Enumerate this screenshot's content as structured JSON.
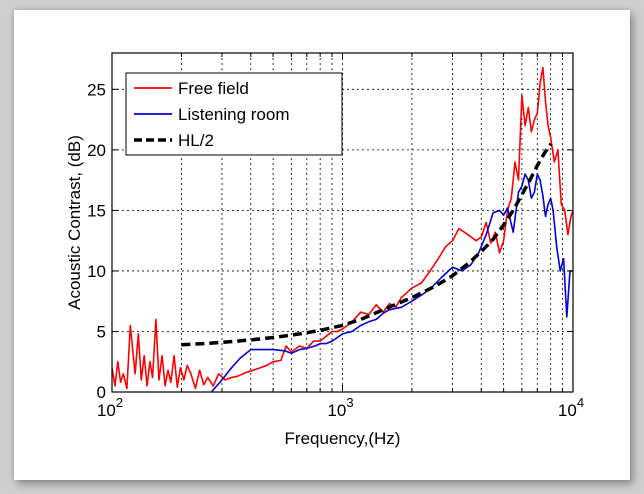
{
  "chart_data": {
    "type": "line",
    "xscale": "log",
    "xlim": [
      100,
      10000
    ],
    "ylim": [
      0,
      28
    ],
    "grid": true,
    "legend_position": "top-left",
    "xlabel": "Frequency,(Hz)",
    "ylabel": "Acoustic Contrast, (dB)",
    "x_ticks": [
      {
        "value": 100,
        "base": "10",
        "exp": "2"
      },
      {
        "value": 1000,
        "base": "10",
        "exp": "3"
      },
      {
        "value": 10000,
        "base": "10",
        "exp": "4"
      }
    ],
    "y_ticks": [
      0,
      5,
      10,
      15,
      20,
      25
    ],
    "series": [
      {
        "name": "Free field",
        "color": "#ff0000",
        "style": "solid",
        "x": [
          100,
          103,
          106,
          109,
          112,
          116,
          120,
          123,
          126,
          130,
          134,
          138,
          142,
          146,
          150,
          155,
          160,
          165,
          170,
          175,
          180,
          186,
          192,
          198,
          205,
          212,
          220,
          230,
          240,
          250,
          260,
          275,
          290,
          310,
          330,
          350,
          380,
          410,
          440,
          470,
          500,
          540,
          570,
          600,
          650,
          700,
          750,
          800,
          850,
          900,
          950,
          1000,
          1100,
          1200,
          1300,
          1400,
          1500,
          1600,
          1700,
          1800,
          1900,
          2000,
          2200,
          2400,
          2600,
          2800,
          3000,
          3200,
          3500,
          3800,
          4000,
          4200,
          4400,
          4600,
          4800,
          5000,
          5200,
          5400,
          5600,
          5800,
          6000,
          6200,
          6400,
          6600,
          6800,
          7000,
          7200,
          7400,
          7600,
          7800,
          8000,
          8300,
          8600,
          8900,
          9200,
          9500,
          9800,
          10000
        ],
        "values": [
          2.0,
          0.5,
          2.5,
          0.8,
          1.5,
          0.3,
          5.5,
          3.5,
          1.5,
          4.8,
          1.0,
          3.0,
          0.5,
          2.5,
          1.2,
          6.0,
          1.0,
          3.0,
          0.5,
          1.8,
          0.8,
          3.0,
          0.4,
          2.0,
          1.0,
          2.2,
          1.5,
          0.3,
          1.8,
          0.6,
          1.2,
          0.5,
          1.5,
          1.0,
          1.2,
          1.3,
          1.6,
          1.8,
          2.0,
          2.2,
          2.5,
          2.6,
          3.8,
          3.3,
          3.8,
          3.6,
          4.2,
          4.2,
          4.6,
          5.0,
          5.0,
          5.2,
          5.8,
          6.6,
          6.4,
          7.2,
          6.6,
          7.3,
          7.0,
          7.8,
          8.2,
          8.6,
          9.0,
          10.0,
          11.0,
          12.0,
          12.5,
          13.5,
          13.0,
          12.5,
          12.8,
          14.0,
          12.3,
          13.2,
          11.5,
          12.5,
          15.0,
          16.0,
          19.0,
          17.5,
          24.5,
          22.0,
          23.5,
          21.5,
          22.5,
          23.0,
          25.5,
          26.8,
          24.0,
          22.0,
          21.0,
          19.0,
          20.0,
          15.5,
          15.0,
          13.0,
          14.5,
          15.0
        ]
      },
      {
        "name": "Listening room",
        "color": "#0000dd",
        "style": "solid",
        "x": [
          270,
          300,
          330,
          360,
          400,
          450,
          500,
          560,
          600,
          650,
          700,
          760,
          800,
          850,
          900,
          950,
          1000,
          1100,
          1200,
          1300,
          1400,
          1500,
          1600,
          1800,
          2000,
          2200,
          2400,
          2700,
          3000,
          3300,
          3600,
          3900,
          4200,
          4500,
          4800,
          5000,
          5200,
          5500,
          5800,
          6000,
          6200,
          6400,
          6600,
          6800,
          7000,
          7200,
          7400,
          7600,
          7800,
          8000,
          8200,
          8500,
          8800,
          9100,
          9400,
          9700,
          10000
        ],
        "values": [
          0.0,
          1.0,
          2.0,
          2.8,
          3.5,
          3.5,
          3.5,
          3.4,
          3.2,
          3.5,
          3.6,
          3.8,
          4.0,
          4.0,
          4.2,
          4.5,
          4.8,
          5.0,
          5.5,
          5.8,
          6.0,
          6.5,
          6.8,
          7.0,
          7.5,
          8.0,
          8.5,
          9.5,
          10.3,
          10.0,
          10.5,
          11.5,
          13.0,
          14.8,
          15.0,
          14.6,
          15.2,
          13.2,
          16.5,
          17.0,
          18.0,
          17.5,
          16.0,
          16.5,
          18.0,
          17.5,
          16.2,
          14.5,
          15.5,
          16.0,
          15.0,
          12.0,
          10.0,
          11.0,
          6.2,
          10.0,
          10.0
        ]
      },
      {
        "name": "HL/2",
        "color": "#000000",
        "style": "dashed",
        "x": [
          200,
          250,
          300,
          400,
          500,
          600,
          700,
          800,
          1000,
          1200,
          1500,
          2000,
          2500,
          3000,
          3500,
          4000,
          4500,
          5000,
          5500,
          6000,
          6500,
          7000,
          7500,
          8000
        ],
        "values": [
          3.9,
          4.0,
          4.1,
          4.3,
          4.5,
          4.7,
          4.9,
          5.1,
          5.5,
          6.0,
          6.8,
          7.8,
          8.7,
          9.6,
          10.6,
          11.6,
          12.6,
          13.8,
          15.0,
          16.3,
          17.5,
          18.7,
          19.7,
          20.5
        ]
      }
    ]
  }
}
